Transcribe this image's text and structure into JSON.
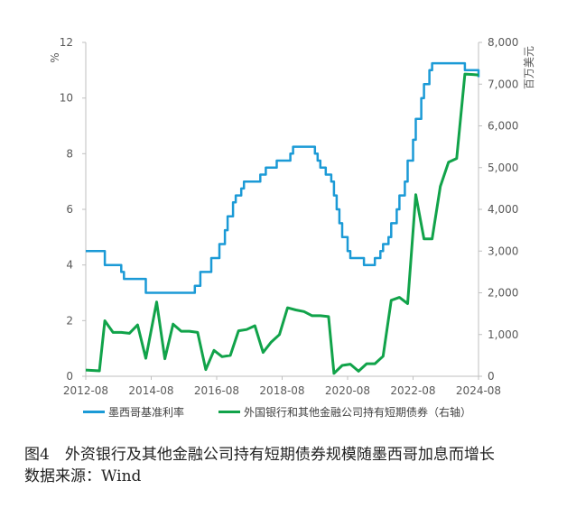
{
  "chart_data": {
    "type": "line",
    "left_axis": {
      "unit": "%",
      "ylim": [
        0,
        12
      ],
      "ticks": [
        "0",
        "2",
        "4",
        "6",
        "8",
        "10",
        "12"
      ]
    },
    "right_axis": {
      "unit": "百万美元",
      "ylim": [
        0,
        8000
      ],
      "ticks": [
        "0",
        "1,000",
        "2,000",
        "3,000",
        "4,000",
        "5,000",
        "6,000",
        "7,000",
        "8,000"
      ]
    },
    "x_ticks": [
      "2012-08",
      "2014-08",
      "2016-08",
      "2018-08",
      "2020-08",
      "2022-08",
      "2024-08"
    ],
    "x_range": [
      "2012-08",
      "2024-08"
    ],
    "grid": false,
    "legend_position": "bottom",
    "series": [
      {
        "name": "墨西哥基准利率",
        "axis": "left",
        "color": "#1b9ad6",
        "step": true,
        "points": [
          [
            "2012-08",
            4.5
          ],
          [
            "2013-03",
            4.0
          ],
          [
            "2013-09",
            3.75
          ],
          [
            "2013-10",
            3.5
          ],
          [
            "2014-06",
            3.0
          ],
          [
            "2015-12",
            3.25
          ],
          [
            "2016-02",
            3.75
          ],
          [
            "2016-06",
            4.25
          ],
          [
            "2016-09",
            4.75
          ],
          [
            "2016-11",
            5.25
          ],
          [
            "2016-12",
            5.75
          ],
          [
            "2017-02",
            6.25
          ],
          [
            "2017-03",
            6.5
          ],
          [
            "2017-05",
            6.75
          ],
          [
            "2017-06",
            7.0
          ],
          [
            "2017-12",
            7.25
          ],
          [
            "2018-02",
            7.5
          ],
          [
            "2018-06",
            7.75
          ],
          [
            "2018-11",
            8.0
          ],
          [
            "2018-12",
            8.25
          ],
          [
            "2019-08",
            8.0
          ],
          [
            "2019-09",
            7.75
          ],
          [
            "2019-10",
            7.5
          ],
          [
            "2019-12",
            7.25
          ],
          [
            "2020-02",
            7.0
          ],
          [
            "2020-03",
            6.5
          ],
          [
            "2020-04",
            6.0
          ],
          [
            "2020-05",
            5.5
          ],
          [
            "2020-06",
            5.0
          ],
          [
            "2020-08",
            4.5
          ],
          [
            "2020-09",
            4.25
          ],
          [
            "2021-02",
            4.0
          ],
          [
            "2021-06",
            4.25
          ],
          [
            "2021-08",
            4.5
          ],
          [
            "2021-09",
            4.75
          ],
          [
            "2021-11",
            5.0
          ],
          [
            "2021-12",
            5.5
          ],
          [
            "2022-02",
            6.0
          ],
          [
            "2022-03",
            6.5
          ],
          [
            "2022-05",
            7.0
          ],
          [
            "2022-06",
            7.75
          ],
          [
            "2022-08",
            8.5
          ],
          [
            "2022-09",
            9.25
          ],
          [
            "2022-11",
            10.0
          ],
          [
            "2022-12",
            10.5
          ],
          [
            "2023-02",
            11.0
          ],
          [
            "2023-03",
            11.25
          ],
          [
            "2024-03",
            11.0
          ],
          [
            "2024-07",
            11.0
          ],
          [
            "2024-08",
            10.75
          ]
        ]
      },
      {
        "name": "外国银行和其他金融公司持有短期债券（右轴）",
        "axis": "right",
        "color": "#11a34a",
        "step": false,
        "points": [
          [
            "2012-08",
            150
          ],
          [
            "2013-01",
            130
          ],
          [
            "2013-03",
            1330
          ],
          [
            "2013-06",
            1050
          ],
          [
            "2013-09",
            1050
          ],
          [
            "2013-12",
            1030
          ],
          [
            "2014-03",
            1230
          ],
          [
            "2014-06",
            430
          ],
          [
            "2014-10",
            1780
          ],
          [
            "2015-01",
            420
          ],
          [
            "2015-04",
            1250
          ],
          [
            "2015-07",
            1080
          ],
          [
            "2015-10",
            1080
          ],
          [
            "2016-01",
            1050
          ],
          [
            "2016-04",
            160
          ],
          [
            "2016-07",
            620
          ],
          [
            "2016-10",
            470
          ],
          [
            "2017-01",
            500
          ],
          [
            "2017-04",
            1090
          ],
          [
            "2017-07",
            1120
          ],
          [
            "2017-10",
            1210
          ],
          [
            "2018-01",
            570
          ],
          [
            "2018-04",
            820
          ],
          [
            "2018-07",
            1000
          ],
          [
            "2018-10",
            1640
          ],
          [
            "2019-01",
            1590
          ],
          [
            "2019-04",
            1550
          ],
          [
            "2019-07",
            1450
          ],
          [
            "2019-10",
            1450
          ],
          [
            "2020-01",
            1430
          ],
          [
            "2020-03",
            70
          ],
          [
            "2020-06",
            260
          ],
          [
            "2020-09",
            290
          ],
          [
            "2020-12",
            120
          ],
          [
            "2021-03",
            300
          ],
          [
            "2021-06",
            300
          ],
          [
            "2021-09",
            480
          ],
          [
            "2021-12",
            1820
          ],
          [
            "2022-03",
            1890
          ],
          [
            "2022-06",
            1740
          ],
          [
            "2022-09",
            4350
          ],
          [
            "2022-12",
            3290
          ],
          [
            "2023-03",
            3290
          ],
          [
            "2023-06",
            4550
          ],
          [
            "2023-09",
            5130
          ],
          [
            "2023-12",
            5220
          ],
          [
            "2024-03",
            7240
          ],
          [
            "2024-06",
            7230
          ],
          [
            "2024-08",
            7220
          ]
        ]
      }
    ]
  },
  "caption": {
    "line1": "图4　外资银行及其他金融公司持有短期债券规模随墨西哥加息而增长",
    "line2": "数据来源：Wind"
  }
}
